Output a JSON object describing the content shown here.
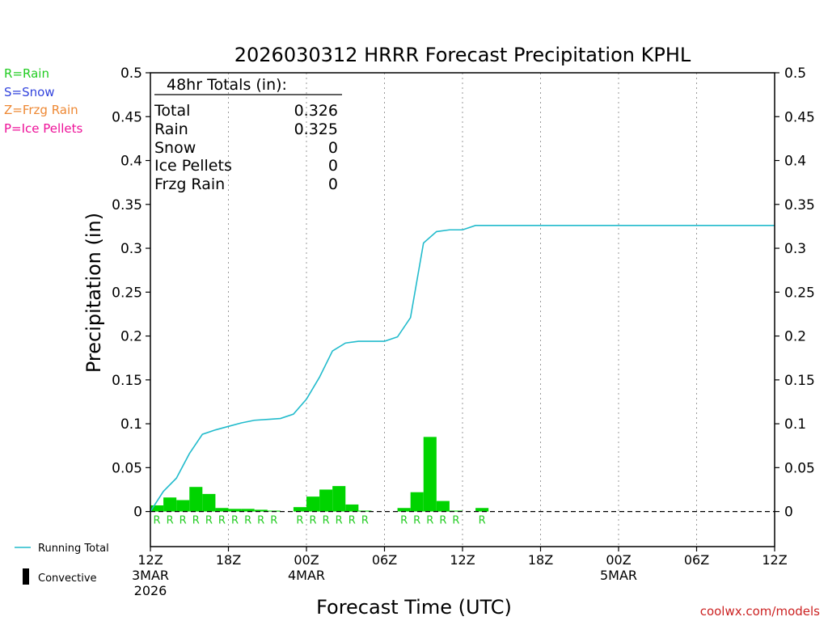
{
  "chart_data": {
    "type": "bar",
    "title": "2026030312 HRRR Forecast Precipitation KPHL",
    "ylabel": "Precipitation (in)",
    "xlabel": "Forecast Time (UTC)",
    "ylim": [
      -0.04,
      0.5
    ],
    "xlim_hours": [
      0,
      48
    ],
    "y_ticks": [
      "0",
      "0.05",
      "0.1",
      "0.15",
      "0.2",
      "0.25",
      "0.3",
      "0.35",
      "0.4",
      "0.45",
      "0.5"
    ],
    "x_ticks": [
      {
        "hour": 0,
        "lines": [
          "12Z",
          "3MAR",
          "2026"
        ]
      },
      {
        "hour": 6,
        "lines": [
          "18Z"
        ]
      },
      {
        "hour": 12,
        "lines": [
          "00Z",
          "4MAR"
        ]
      },
      {
        "hour": 18,
        "lines": [
          "06Z"
        ]
      },
      {
        "hour": 24,
        "lines": [
          "12Z"
        ]
      },
      {
        "hour": 30,
        "lines": [
          "18Z"
        ]
      },
      {
        "hour": 36,
        "lines": [
          "00Z",
          "5MAR"
        ]
      },
      {
        "hour": 42,
        "lines": [
          "06Z"
        ]
      },
      {
        "hour": 48,
        "lines": [
          "12Z"
        ]
      }
    ],
    "grid": "dotted vertical lines at 6-hour ticks",
    "bar_series": {
      "name": "Convective",
      "hours": [
        1,
        2,
        3,
        4,
        5,
        6,
        7,
        8,
        9,
        10,
        11,
        12,
        13,
        14,
        15,
        16,
        17,
        18,
        19,
        20,
        21,
        22,
        23,
        24,
        25,
        26
      ],
      "values": [
        0.007,
        0.016,
        0.013,
        0.028,
        0.02,
        0.004,
        0.003,
        0.003,
        0.002,
        0.001,
        0.0,
        0.005,
        0.017,
        0.025,
        0.029,
        0.008,
        0.001,
        0.0,
        0.0,
        0.004,
        0.022,
        0.085,
        0.012,
        0.001,
        0.0,
        0.004
      ]
    },
    "running_total": {
      "name": "Running Total",
      "hours": [
        0,
        1,
        2,
        3,
        4,
        5,
        6,
        7,
        8,
        9,
        10,
        11,
        12,
        13,
        14,
        15,
        16,
        17,
        18,
        19,
        20,
        21,
        22,
        23,
        24,
        25,
        26,
        36,
        48
      ],
      "values": [
        0.0,
        0.023,
        0.038,
        0.066,
        0.088,
        0.093,
        0.097,
        0.101,
        0.104,
        0.105,
        0.106,
        0.111,
        0.128,
        0.153,
        0.183,
        0.192,
        0.194,
        0.194,
        0.194,
        0.199,
        0.221,
        0.306,
        0.319,
        0.321,
        0.321,
        0.326,
        0.326,
        0.326,
        0.326
      ]
    },
    "precip_type_markers": {
      "hours": [
        1,
        2,
        3,
        4,
        5,
        6,
        7,
        8,
        9,
        10,
        12,
        13,
        14,
        15,
        16,
        17,
        20,
        21,
        22,
        23,
        24,
        26
      ],
      "labels": [
        "R",
        "R",
        "R",
        "R",
        "R",
        "R",
        "R",
        "R",
        "R",
        "R",
        "R",
        "R",
        "R",
        "R",
        "R",
        "R",
        "R",
        "R",
        "R",
        "R",
        "R",
        "R"
      ]
    },
    "totals_box": {
      "heading": "48hr Totals (in):",
      "rows": [
        {
          "label": "Total",
          "value": "0.326"
        },
        {
          "label": "Rain",
          "value": "0.325"
        },
        {
          "label": "Snow",
          "value": "0"
        },
        {
          "label": "Ice Pellets",
          "value": "0"
        },
        {
          "label": "Frzg Rain",
          "value": "0"
        }
      ]
    },
    "type_legend": [
      {
        "text": "R=Rain",
        "color": "#22cc22"
      },
      {
        "text": "S=Snow",
        "color": "#3344dd"
      },
      {
        "text": "Z=Frzg Rain",
        "color": "#ee8833"
      },
      {
        "text": "P=Ice Pellets",
        "color": "#ee1199"
      }
    ],
    "series_legend": [
      {
        "text": "Running Total",
        "color": "#22bbcc"
      },
      {
        "text": "Convective",
        "color": "#000000"
      }
    ],
    "credit": "coolwx.com/models",
    "colors": {
      "bars": "#00d400",
      "line": "#22bbcc",
      "marker": "#22cc22",
      "credit": "#cc2222"
    }
  }
}
